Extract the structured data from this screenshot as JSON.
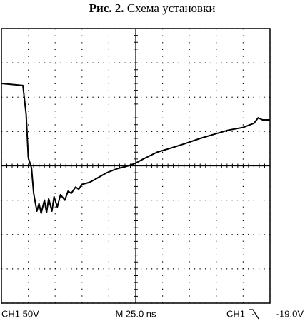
{
  "chart_data": {
    "type": "line",
    "title_label": "Рис. 2.",
    "title": "Схема установки",
    "x": [
      0,
      20,
      23,
      25,
      28,
      30,
      33,
      35,
      37,
      40,
      42,
      44,
      47,
      49,
      52,
      55,
      59,
      62,
      65,
      69,
      72,
      75,
      82,
      88,
      98,
      108,
      118,
      125,
      132,
      145,
      158,
      172,
      185,
      198,
      211,
      225,
      235,
      239,
      243,
      250
    ],
    "series": [
      {
        "color": "#000000",
        "values": [
          120,
          117,
          75,
          12,
          -3,
          -40,
          -66,
          -55,
          -69,
          -50,
          -68,
          -48,
          -66,
          -45,
          -60,
          -42,
          -50,
          -37,
          -40,
          -31,
          -34,
          -27,
          -24,
          -19,
          -10,
          -4,
          0,
          4,
          10,
          20,
          26,
          33,
          40,
          46,
          52,
          56,
          62,
          70,
          67,
          67
        ]
      }
    ],
    "xlim": [
      0,
      250
    ],
    "ylim": [
      -200,
      200
    ],
    "xticks": [
      0,
      25,
      50,
      75,
      100,
      125,
      150,
      175,
      200,
      225,
      250
    ],
    "yticks": [
      -200,
      -150,
      -100,
      -50,
      0,
      50,
      100,
      150,
      200
    ],
    "grid": true,
    "footer": {
      "channel": "CH1 50V",
      "timebase": "M 25.0 ns",
      "trigger_source": "CH1",
      "trigger_level": "-19.0V"
    }
  }
}
